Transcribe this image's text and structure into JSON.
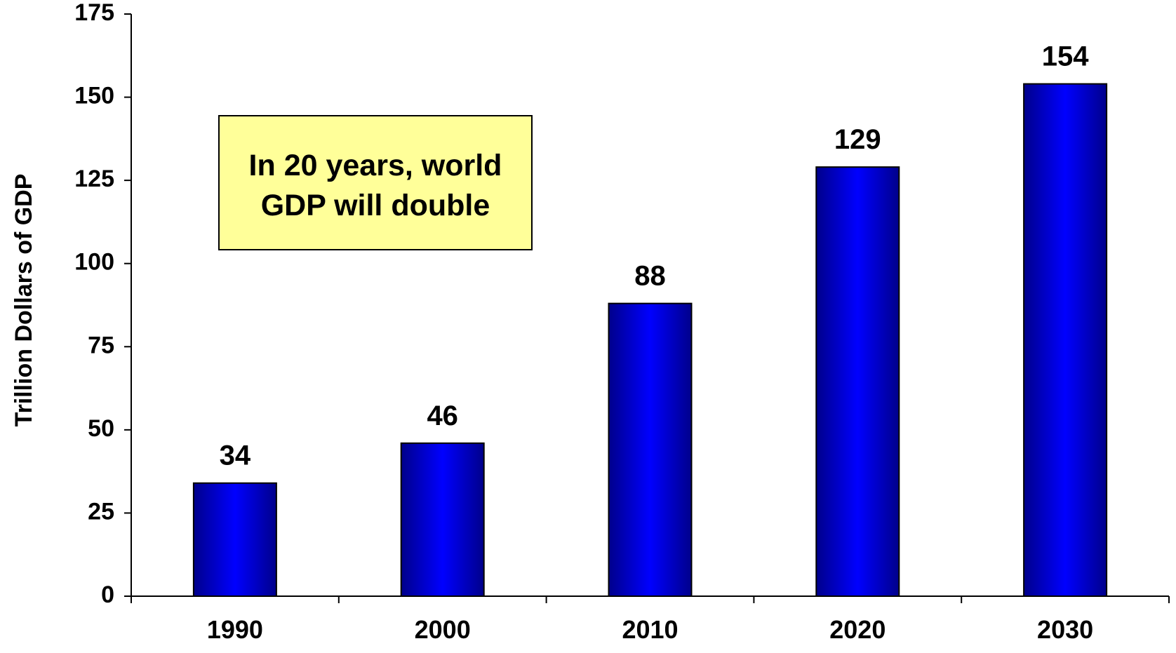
{
  "chart_data": {
    "type": "bar",
    "categories": [
      "1990",
      "2000",
      "2010",
      "2020",
      "2030"
    ],
    "values": [
      34,
      46,
      88,
      129,
      154
    ],
    "data_labels": [
      "34",
      "46",
      "88",
      "129",
      "154"
    ],
    "title": "",
    "xlabel": "",
    "ylabel": "Trillion Dollars of GDP",
    "ylim": [
      0,
      175
    ],
    "yticks": [
      0,
      25,
      50,
      75,
      100,
      125,
      150,
      175
    ],
    "grid": false,
    "legend": "none",
    "bar_color": "#0000ff",
    "bar_color_dark": "#00008b",
    "annotation": {
      "lines": [
        "In 20 years, world",
        "GDP will double"
      ],
      "background": "#ffff99"
    }
  }
}
